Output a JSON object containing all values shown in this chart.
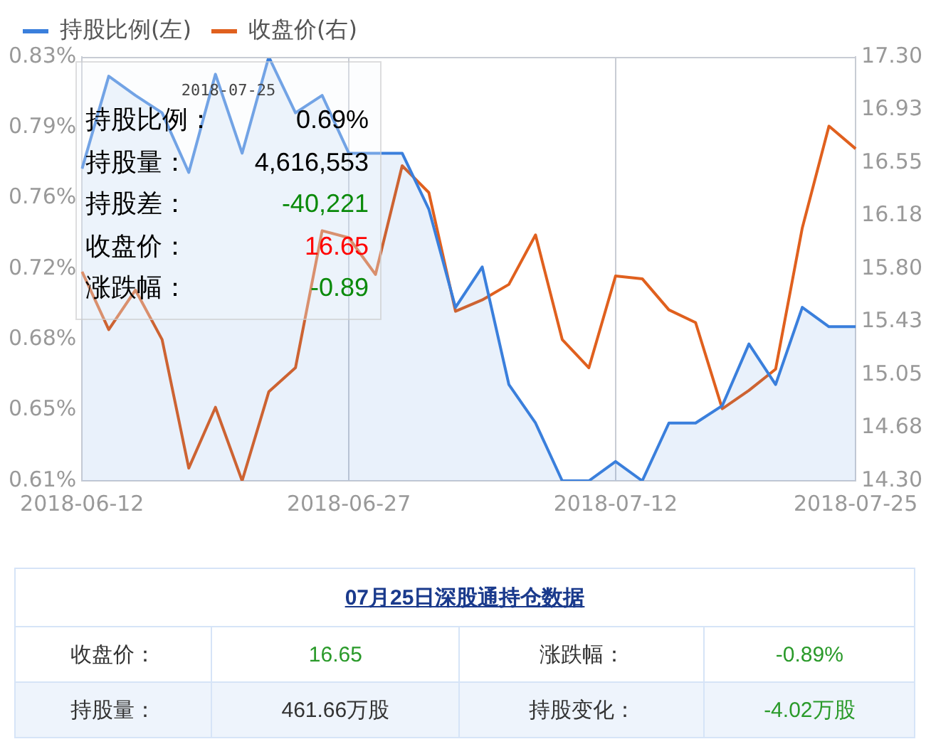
{
  "chart_data": {
    "type": "line",
    "categories": [
      "2018-06-12",
      null,
      null,
      null,
      null,
      null,
      null,
      null,
      null,
      null,
      "2018-06-27",
      null,
      null,
      null,
      null,
      null,
      null,
      null,
      null,
      null,
      "2018-07-12",
      null,
      null,
      null,
      null,
      null,
      null,
      null,
      null,
      "2018-07-25"
    ],
    "series": [
      {
        "name": "持股比例(左)",
        "type": "area",
        "color": "#3a7fdc",
        "axis": "y",
        "values": [
          0.772,
          0.82,
          0.81,
          0.801,
          0.77,
          0.821,
          0.78,
          0.83,
          0.801,
          0.81,
          0.78,
          0.78,
          0.78,
          0.751,
          0.7,
          0.721,
          0.66,
          0.64,
          0.61,
          0.61,
          0.62,
          0.61,
          0.64,
          0.64,
          0.649,
          0.681,
          0.66,
          0.7,
          0.69,
          0.69
        ]
      },
      {
        "name": "收盘价(右)",
        "type": "line",
        "color": "#e0601e",
        "axis": "y2",
        "values": [
          15.78,
          15.37,
          15.65,
          15.3,
          14.39,
          14.82,
          14.3,
          14.93,
          15.1,
          16.07,
          16.02,
          15.76,
          16.53,
          16.34,
          15.5,
          15.58,
          15.69,
          16.04,
          15.3,
          15.1,
          15.75,
          15.73,
          15.51,
          15.42,
          14.81,
          14.94,
          15.09,
          16.09,
          16.81,
          16.65
        ]
      }
    ],
    "ylim": [
      0.61,
      0.83
    ],
    "yticks": [
      {
        "value": 0.61,
        "label": "0.61%"
      },
      {
        "value": 0.6467,
        "label": "0.65%"
      },
      {
        "value": 0.6833,
        "label": "0.68%"
      },
      {
        "value": 0.72,
        "label": "0.72%"
      },
      {
        "value": 0.7567,
        "label": "0.76%"
      },
      {
        "value": 0.7933,
        "label": "0.79%"
      },
      {
        "value": 0.83,
        "label": "0.83%"
      }
    ],
    "y2lim": [
      14.3,
      17.3
    ],
    "y2ticks": [
      {
        "value": 14.3,
        "label": "14.30"
      },
      {
        "value": 14.675,
        "label": "14.68"
      },
      {
        "value": 15.05,
        "label": "15.05"
      },
      {
        "value": 15.425,
        "label": "15.43"
      },
      {
        "value": 15.8,
        "label": "15.80"
      },
      {
        "value": 16.175,
        "label": "16.18"
      },
      {
        "value": 16.55,
        "label": "16.55"
      },
      {
        "value": 16.925,
        "label": "16.93"
      },
      {
        "value": 17.3,
        "label": "17.30"
      }
    ],
    "grid": "x",
    "legend": "top left",
    "marker": "none",
    "annotations": [
      "2018-07-25",
      "持股比例：",
      "0.69%",
      "持股量：",
      "4,616,553",
      "持股差：",
      "-40,221",
      "收盘价：",
      "16.65",
      "涨跌幅：",
      "-0.89",
      "07月25日深股通持仓数据",
      "收盘价：",
      "16.65",
      "涨跌幅：",
      "-0.89%",
      "持股量：",
      "461.66万股",
      "持股变化：",
      "-4.02万股"
    ]
  }
}
